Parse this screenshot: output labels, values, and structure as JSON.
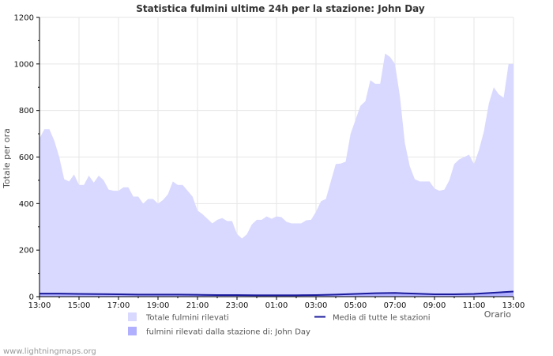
{
  "chart_data": {
    "type": "area",
    "title": "Statistica fulmini ultime 24h per la stazione: John Day",
    "ylabel": "Totale per ora",
    "xlabel": "Orario",
    "ylim": [
      0,
      1200
    ],
    "yticks": [
      0,
      200,
      400,
      600,
      800,
      1000,
      1200
    ],
    "xlim_hours": [
      0,
      24
    ],
    "xticks": [
      {
        "h": 0,
        "label": "13:00"
      },
      {
        "h": 2,
        "label": "15:00"
      },
      {
        "h": 4,
        "label": "17:00"
      },
      {
        "h": 6,
        "label": "19:00"
      },
      {
        "h": 8,
        "label": "21:00"
      },
      {
        "h": 10,
        "label": "23:00"
      },
      {
        "h": 12,
        "label": "01:00"
      },
      {
        "h": 14,
        "label": "03:00"
      },
      {
        "h": 16,
        "label": "05:00"
      },
      {
        "h": 18,
        "label": "07:00"
      },
      {
        "h": 20,
        "label": "09:00"
      },
      {
        "h": 22,
        "label": "11:00"
      },
      {
        "h": 24,
        "label": "13:00"
      }
    ],
    "grid": true,
    "series": [
      {
        "name": "Totale fulmini rilevati",
        "kind": "area",
        "color": "#d9d9ff",
        "x_hours": [
          0,
          0.25,
          0.5,
          0.75,
          1,
          1.25,
          1.5,
          1.75,
          2,
          2.25,
          2.5,
          2.75,
          3,
          3.25,
          3.5,
          3.75,
          4,
          4.25,
          4.5,
          4.75,
          5,
          5.25,
          5.5,
          5.75,
          6,
          6.25,
          6.5,
          6.75,
          7,
          7.25,
          7.5,
          7.75,
          8,
          8.25,
          8.5,
          8.75,
          9,
          9.25,
          9.5,
          9.75,
          10,
          10.25,
          10.5,
          10.75,
          11,
          11.25,
          11.5,
          11.75,
          12,
          12.25,
          12.5,
          12.75,
          13,
          13.25,
          13.5,
          13.75,
          14,
          14.25,
          14.5,
          14.75,
          15,
          15.25,
          15.5,
          15.75,
          16,
          16.25,
          16.5,
          16.75,
          17,
          17.25,
          17.5,
          17.75,
          18,
          18.25,
          18.5,
          18.75,
          19,
          19.25,
          19.5,
          19.75,
          20,
          20.25,
          20.5,
          20.75,
          21,
          21.25,
          21.5,
          21.75,
          22,
          22.25,
          22.5,
          22.75,
          23,
          23.25,
          23.5,
          23.75,
          24
        ],
        "values": [
          680,
          720,
          720,
          670,
          600,
          505,
          495,
          525,
          480,
          480,
          520,
          490,
          520,
          500,
          460,
          455,
          455,
          470,
          470,
          430,
          430,
          400,
          420,
          420,
          400,
          415,
          440,
          495,
          480,
          480,
          455,
          430,
          370,
          355,
          335,
          315,
          330,
          338,
          325,
          325,
          270,
          250,
          268,
          310,
          330,
          330,
          345,
          335,
          345,
          342,
          322,
          315,
          315,
          315,
          328,
          330,
          365,
          410,
          420,
          495,
          570,
          572,
          580,
          700,
          760,
          820,
          840,
          930,
          915,
          915,
          1045,
          1030,
          1000,
          860,
          660,
          560,
          505,
          495,
          495,
          495,
          465,
          455,
          460,
          500,
          570,
          590,
          600,
          610,
          570,
          630,
          710,
          830,
          900,
          870,
          855,
          1000,
          1000
        ]
      },
      {
        "name": "fulmini rilevati dalla stazione di: John Day",
        "kind": "area",
        "color": "#b0b0ff",
        "x_hours": [
          0,
          1,
          2,
          3,
          4,
          5,
          6,
          7,
          8,
          9,
          10,
          11,
          12,
          13,
          14,
          15,
          16,
          17,
          18,
          19,
          20,
          21,
          22,
          23,
          24
        ],
        "values": [
          13,
          13,
          12,
          11,
          10,
          9,
          9,
          9,
          8,
          7,
          7,
          6,
          6,
          6,
          7,
          9,
          12,
          15,
          16,
          13,
          10,
          10,
          12,
          17,
          22
        ]
      },
      {
        "name": "Media di tutte le stazioni",
        "kind": "line",
        "color": "#1b1b9c",
        "x_hours": [
          0,
          1,
          2,
          3,
          4,
          5,
          6,
          7,
          8,
          9,
          10,
          11,
          12,
          13,
          14,
          15,
          16,
          17,
          18,
          19,
          20,
          21,
          22,
          23,
          24
        ],
        "values": [
          13,
          13,
          12,
          11,
          10,
          9,
          9,
          9,
          8,
          7,
          7,
          6,
          6,
          6,
          7,
          9,
          12,
          15,
          16,
          13,
          10,
          10,
          12,
          17,
          22
        ]
      }
    ],
    "legend": [
      {
        "label": "Totale fulmini rilevati",
        "swatch": "box",
        "color": "#d9d9ff"
      },
      {
        "label": "fulmini rilevati dalla stazione di: John Day",
        "swatch": "box",
        "color": "#b0b0ff"
      },
      {
        "label": "Media di tutte le stazioni",
        "swatch": "line",
        "color": "#1b1b9c"
      }
    ]
  },
  "footer": {
    "source": "www.lightningmaps.org"
  },
  "colors": {
    "grid": "#e6e6e6",
    "axis": "#000000"
  }
}
